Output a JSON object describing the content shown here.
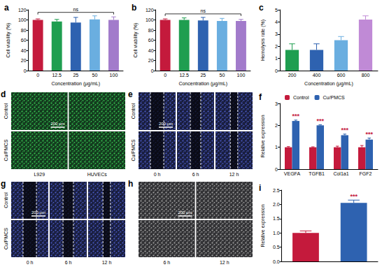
{
  "chart_data": [
    {
      "type": "bar",
      "title": "a",
      "x_label": "Concentration (μg/mL)",
      "y_label": "Cell viability (%)",
      "categories": [
        "0",
        "12.5",
        "25",
        "50",
        "100"
      ],
      "values": [
        100,
        97,
        95,
        101,
        100
      ],
      "errors": [
        2,
        4,
        10,
        7,
        6
      ],
      "colors": [
        "#c41a3c",
        "#1f9e50",
        "#2e62b0",
        "#6aaee0",
        "#a27bcb"
      ],
      "ylim": [
        0,
        120
      ],
      "yticks": [
        0,
        20,
        40,
        60,
        80,
        100,
        120
      ],
      "grid": false,
      "annotations": [
        "ns"
      ]
    },
    {
      "type": "bar",
      "title": "b",
      "x_label": "Concentration (μg/mL)",
      "y_label": "Cell viability (%)",
      "categories": [
        "0",
        "12.5",
        "25",
        "50",
        "100"
      ],
      "values": [
        100,
        100,
        99,
        98,
        98
      ],
      "errors": [
        2,
        4,
        6,
        5,
        3
      ],
      "colors": [
        "#c41a3c",
        "#1f9e50",
        "#2e62b0",
        "#6aaee0",
        "#a27bcb"
      ],
      "ylim": [
        0,
        120
      ],
      "yticks": [
        0,
        20,
        40,
        60,
        80,
        100,
        120
      ],
      "grid": false,
      "annotations": [
        "ns"
      ]
    },
    {
      "type": "bar",
      "title": "c",
      "x_label": "Concentration (μg/mL)",
      "y_label": "Hemolysis rate (%)",
      "categories": [
        "200",
        "400",
        "600",
        "800"
      ],
      "values": [
        1.7,
        1.7,
        2.5,
        4.2
      ],
      "errors": [
        0.5,
        0.5,
        0.3,
        0.3
      ],
      "colors": [
        "#1f9e50",
        "#2e62b0",
        "#6aaee0",
        "#c08ad6"
      ],
      "ylim": [
        0,
        5
      ],
      "yticks": [
        0,
        1,
        2,
        3,
        4,
        5
      ],
      "grid": false
    },
    {
      "type": "bar",
      "title": "f",
      "y_label": "Relative expression",
      "categories": [
        "VEGFA",
        "TGFB1",
        "Col1a1",
        "FGF2"
      ],
      "series": [
        {
          "name": "Control",
          "color": "#c41a3c",
          "values": [
            1.0,
            1.0,
            1.0,
            1.0
          ],
          "errors": [
            0.03,
            0.02,
            0.05,
            0.08
          ]
        },
        {
          "name": "Cu/PMCS",
          "color": "#2e62b0",
          "values": [
            2.2,
            2.0,
            1.55,
            1.35
          ],
          "errors": [
            0.04,
            0.03,
            0.05,
            0.07
          ],
          "annotations": [
            "***",
            "***",
            "***",
            "***"
          ]
        }
      ],
      "ylim": [
        0,
        3
      ],
      "yticks": [
        0,
        1,
        2,
        3
      ],
      "grid": false,
      "legend": "upper left"
    },
    {
      "type": "bar",
      "title": "i",
      "y_label": "Relative expression",
      "categories": [
        null,
        null
      ],
      "series": [
        {
          "colors": [
            "#c41a3c",
            "#2e62b0"
          ],
          "values": [
            1.0,
            2.05
          ],
          "errors": [
            0.07,
            0.1
          ],
          "annotations": [
            null,
            "***"
          ]
        }
      ],
      "ylim": [
        0,
        2.5
      ],
      "yticks": [
        {
          "value": 0,
          "label": "0.0"
        },
        {
          "value": 0.5,
          "label": "0.5"
        },
        {
          "value": 1,
          "label": "1.0"
        },
        {
          "value": 1.5,
          "label": "1.5"
        },
        {
          "value": 2,
          "label": "2.0"
        },
        {
          "value": 2.5,
          "label": "2.5"
        }
      ],
      "grid": false,
      "tick_labels": "y"
    }
  ],
  "image_panels": [
    {
      "title": "d",
      "rows": [
        "Control",
        "Cu/PMCS"
      ],
      "columns": [
        "L929",
        "HUVECs"
      ],
      "scale_bar": "200 μm",
      "color": "#3ddc5a"
    },
    {
      "title": "e",
      "rows": [
        "Control",
        "Cu/PMCS"
      ],
      "columns": [
        "0 h",
        "6 h",
        "12 h"
      ],
      "scale_bar": "200 μm",
      "color": "#5566e0",
      "line_style": "dashed"
    },
    {
      "title": "g",
      "rows": [
        "Control",
        "Cu/PMCS"
      ],
      "columns": [
        "0 h",
        "6 h",
        "12 h"
      ],
      "scale_bar": "200 μm",
      "color": "#5566e0",
      "line_style": "dashed"
    },
    {
      "title": "h",
      "rows": [
        null,
        null
      ],
      "columns": [
        "6 h",
        "12 h"
      ],
      "scale_bar": "200 μm",
      "color": "#b8b8b8"
    }
  ]
}
